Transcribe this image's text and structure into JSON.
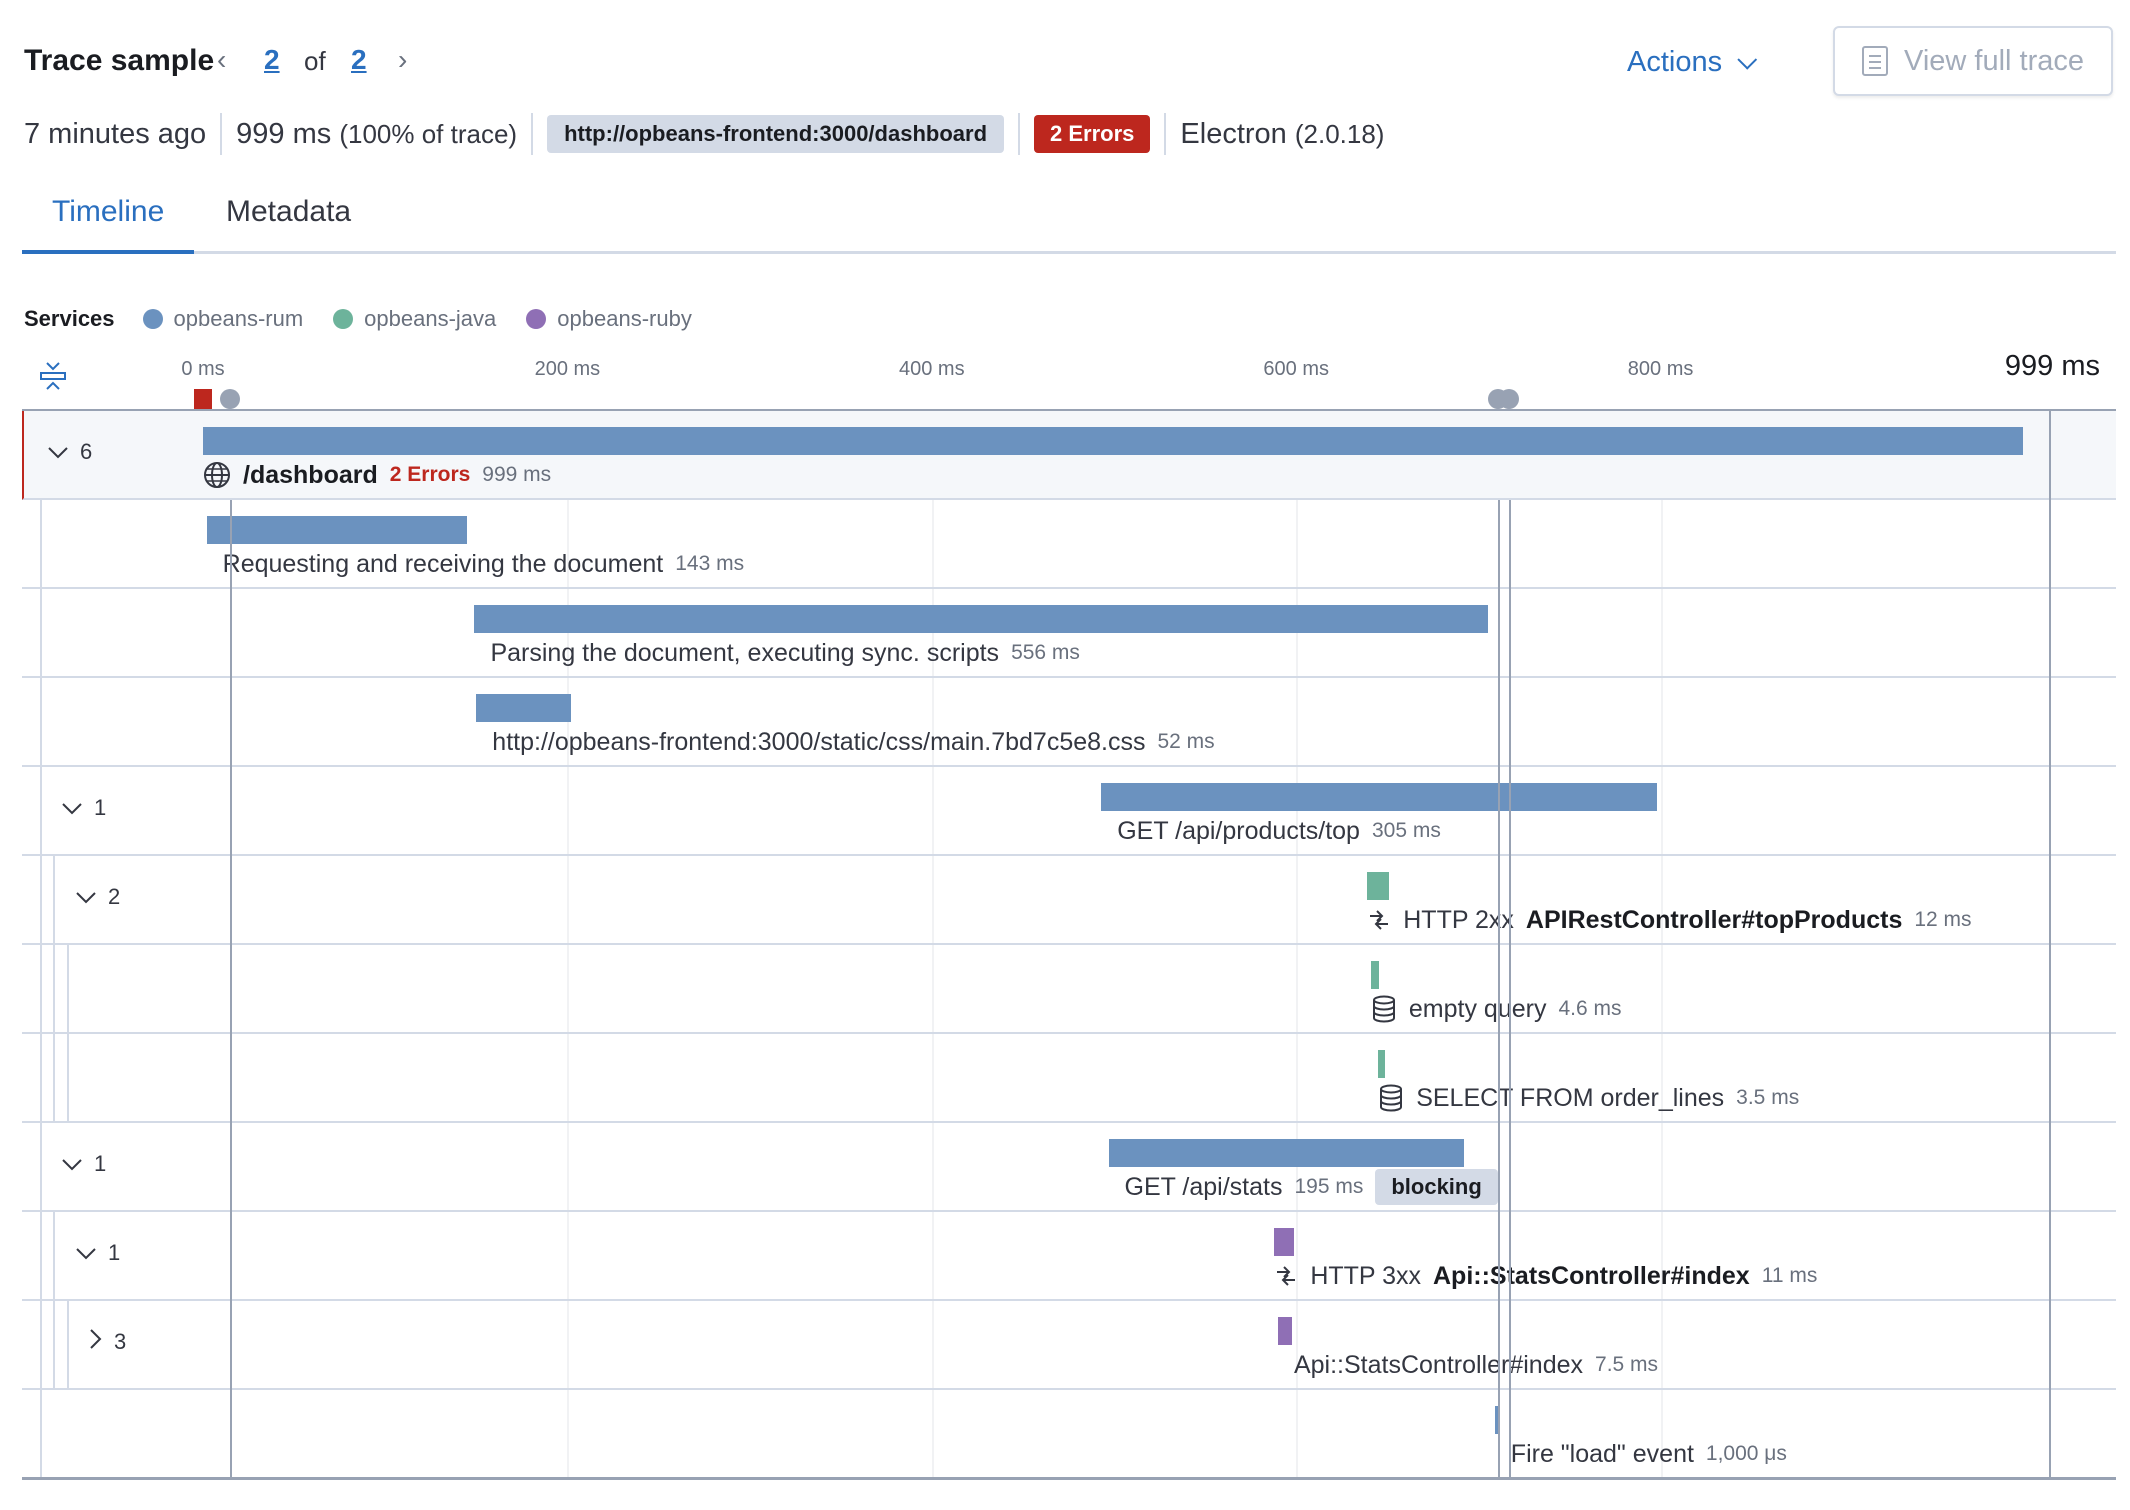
{
  "header": {
    "title": "Trace sample",
    "current_page": "2",
    "of_label": "of",
    "total_pages": "2",
    "actions_label": "Actions",
    "view_full_trace_label": "View full trace"
  },
  "summary": {
    "timestamp": "7 minutes ago",
    "duration": "999 ms",
    "duration_pct": "(100% of trace)",
    "url": "http://opbeans-frontend:3000/dashboard",
    "errors_badge": "2 Errors",
    "agent": "Electron",
    "agent_version": "(2.0.18)"
  },
  "tabs": [
    {
      "label": "Timeline",
      "active": true
    },
    {
      "label": "Metadata",
      "active": false
    }
  ],
  "services": {
    "label": "Services",
    "items": [
      {
        "name": "opbeans-rum",
        "color": "#6b92bf"
      },
      {
        "name": "opbeans-java",
        "color": "#6db39b"
      },
      {
        "name": "opbeans-ruby",
        "color": "#8f6fb5"
      }
    ]
  },
  "axis": {
    "ticks": [
      {
        "ms": 0,
        "label": "0 ms"
      },
      {
        "ms": 200,
        "label": "200 ms"
      },
      {
        "ms": 400,
        "label": "400 ms"
      },
      {
        "ms": 600,
        "label": "600 ms"
      },
      {
        "ms": 800,
        "label": "800 ms"
      }
    ],
    "max_label": "999 ms",
    "max_ms": 999,
    "marks": [
      {
        "type": "error",
        "ms": 0,
        "color": "#bd271e"
      },
      {
        "type": "agent",
        "ms": 15,
        "color": "#98a2b3"
      },
      {
        "type": "agent",
        "ms": 711,
        "color": "#98a2b3"
      },
      {
        "type": "agent",
        "ms": 717,
        "color": "#98a2b3"
      }
    ]
  },
  "rows": [
    {
      "name": "/dashboard",
      "bold": true,
      "icon": "globe",
      "service": 0,
      "start_ms": 0,
      "duration_ms": 999,
      "duration": "999 ms",
      "errors": "2 Errors",
      "toggle": {
        "count": "6",
        "expanded": true,
        "depth": 0
      },
      "root": true
    },
    {
      "name": "Requesting and receiving the document",
      "service": 0,
      "start_ms": 2,
      "duration_ms": 143,
      "duration": "143 ms"
    },
    {
      "name": "Parsing the document, executing sync. scripts",
      "service": 0,
      "start_ms": 149,
      "duration_ms": 556,
      "duration": "556 ms"
    },
    {
      "name": "http://opbeans-frontend:3000/static/css/main.7bd7c5e8.css",
      "service": 0,
      "start_ms": 150,
      "duration_ms": 52,
      "duration": "52 ms"
    },
    {
      "name": "GET /api/products/top",
      "service": 0,
      "start_ms": 493,
      "duration_ms": 305,
      "duration": "305 ms",
      "toggle": {
        "count": "1",
        "expanded": true,
        "depth": 1
      }
    },
    {
      "prefix": "HTTP 2xx",
      "name": "APIRestController#topProducts",
      "bold": true,
      "icon": "exchange",
      "service": 1,
      "start_ms": 639,
      "duration_ms": 12,
      "duration": "12 ms",
      "toggle": {
        "count": "2",
        "expanded": true,
        "depth": 2
      }
    },
    {
      "name": "empty query",
      "icon": "database",
      "service": 1,
      "start_ms": 641,
      "duration_ms": 4.6,
      "duration": "4.6 ms"
    },
    {
      "name": "SELECT FROM order_lines",
      "icon": "database",
      "service": 1,
      "start_ms": 645,
      "duration_ms": 3.5,
      "duration": "3.5 ms"
    },
    {
      "name": "GET /api/stats",
      "service": 0,
      "start_ms": 497,
      "duration_ms": 195,
      "duration": "195 ms",
      "badge": "blocking",
      "toggle": {
        "count": "1",
        "expanded": true,
        "depth": 1
      }
    },
    {
      "prefix": "HTTP 3xx",
      "name": "Api::StatsController#index",
      "bold": true,
      "icon": "exchange",
      "service": 2,
      "start_ms": 588,
      "duration_ms": 11,
      "duration": "11 ms",
      "toggle": {
        "count": "1",
        "expanded": true,
        "depth": 2
      }
    },
    {
      "name": "Api::StatsController#index",
      "service": 2,
      "start_ms": 590,
      "duration_ms": 7.5,
      "duration": "7.5 ms",
      "toggle": {
        "count": "3",
        "expanded": false,
        "depth": 3
      }
    },
    {
      "name": "Fire \"load\" event",
      "service": 0,
      "start_ms": 709,
      "duration_ms": 1,
      "duration": "1,000 μs"
    }
  ]
}
